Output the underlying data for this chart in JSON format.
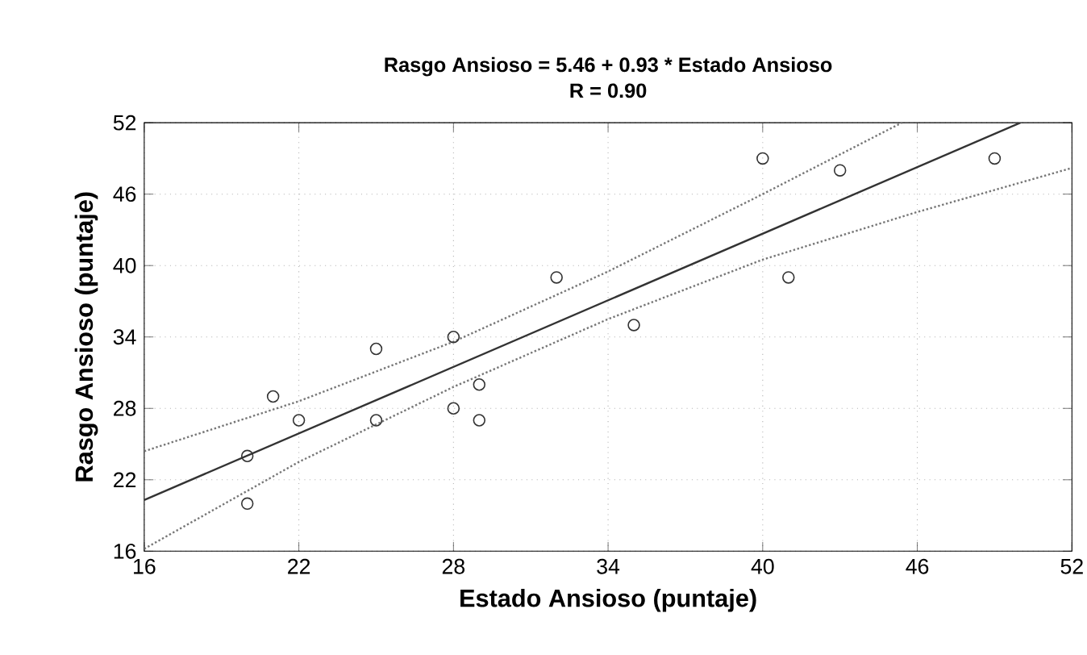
{
  "chart_data": {
    "type": "scatter",
    "title": "Rasgo Ansioso = 5.46 + 0.93 * Estado Ansioso",
    "subtitle": "R = 0.90",
    "xlabel": "Estado Ansioso (puntaje)",
    "ylabel": "Rasgo Ansioso (puntaje)",
    "xlim": [
      16,
      52
    ],
    "ylim": [
      16,
      52
    ],
    "xticks": [
      16,
      22,
      28,
      34,
      40,
      46,
      52
    ],
    "yticks": [
      16,
      22,
      28,
      34,
      40,
      46,
      52
    ],
    "grid": true,
    "series": [
      {
        "color": "#333333",
        "marker": "circle",
        "x": [
          20,
          20,
          21,
          22,
          25,
          25,
          28,
          28,
          29,
          29,
          32,
          35,
          40,
          41,
          43,
          49
        ],
        "values": [
          24,
          20,
          29,
          27,
          33,
          27,
          34,
          28,
          30,
          27,
          39,
          35,
          49,
          39,
          48,
          49
        ]
      },
      {
        "type": "line",
        "color": "#333333",
        "line_style": "solid",
        "x": [
          16,
          50
        ],
        "values": [
          20.3,
          52
        ]
      },
      {
        "type": "line",
        "color": "#777777",
        "line_style": "dotted",
        "x": [
          16,
          22,
          28,
          34,
          40,
          45.4
        ],
        "values": [
          24.4,
          28.6,
          33.6,
          39.5,
          46,
          52
        ]
      },
      {
        "type": "line",
        "color": "#777777",
        "line_style": "dotted",
        "x": [
          16,
          22,
          28,
          34,
          40,
          46,
          52
        ],
        "values": [
          16.2,
          23.5,
          29.8,
          35.5,
          40.5,
          44.5,
          48.2
        ]
      }
    ]
  }
}
